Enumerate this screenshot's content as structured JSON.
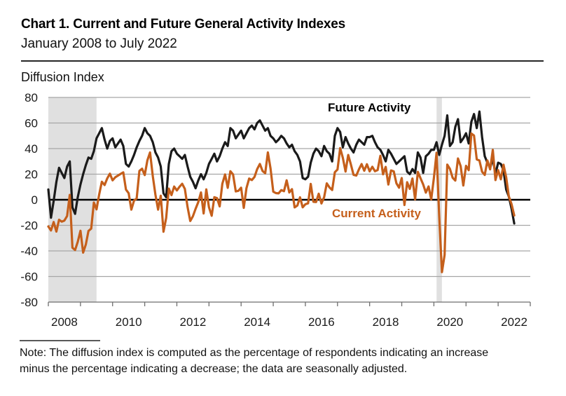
{
  "header": {
    "title": "Chart 1. Current and Future General Activity Indexes",
    "subtitle": "January 2008 to July 2022"
  },
  "note": {
    "line1": "Note: The diffusion index is computed as the percentage of respondents indicating an increase",
    "line2": "minus the percentage indicating a decrease; the data are seasonally adjusted."
  },
  "chart_data": {
    "type": "line",
    "title": "Chart 1. Current and Future General Activity Indexes",
    "subtitle": "January 2008 to July 2022",
    "ylabel": "Diffusion Index",
    "xlabel": "",
    "ylim": [
      -80,
      80
    ],
    "y_ticks": [
      -80,
      -60,
      -40,
      -20,
      0,
      20,
      40,
      60,
      80
    ],
    "x_start": "2008-01",
    "x_end": "2022-07",
    "x_axis_end": "2023-01",
    "x_tick_years": [
      2008,
      2010,
      2012,
      2014,
      2016,
      2018,
      2020,
      2022
    ],
    "grid": true,
    "gridline_color": "#a6a6a6",
    "zero_line_color": "#000000",
    "recession_color": "#e0e0e0",
    "recessions": [
      [
        "2008-01",
        "2009-07"
      ],
      [
        "2020-02",
        "2020-04"
      ]
    ],
    "series": [
      {
        "name": "Future Activity",
        "color": "#1a1a1a",
        "values": [
          8.0,
          -14.0,
          -1.0,
          14.0,
          25.0,
          21.0,
          17.0,
          26.0,
          30.0,
          -6.0,
          -11.0,
          2.0,
          12.0,
          20.0,
          27.0,
          33.0,
          32.0,
          38.0,
          48.0,
          52.0,
          56.0,
          47.0,
          40.0,
          46.0,
          48.0,
          41.0,
          44.0,
          47.0,
          42.0,
          28.0,
          26.0,
          30.0,
          35.0,
          41.0,
          46.0,
          50.0,
          56.0,
          52.0,
          50.0,
          45.0,
          37.0,
          33.0,
          26.0,
          5.0,
          2.0,
          28.0,
          38.0,
          40.0,
          36.0,
          34.0,
          32.0,
          35.0,
          26.0,
          18.0,
          14.0,
          9.0,
          15.0,
          20.0,
          16.0,
          21.0,
          28.0,
          32.0,
          36.0,
          30.0,
          34.0,
          40.0,
          45.0,
          42.0,
          56.0,
          54.0,
          48.0,
          51.0,
          54.0,
          48.0,
          52.0,
          56.0,
          58.0,
          55.0,
          60.0,
          62.0,
          58.0,
          54.0,
          56.0,
          50.0,
          48.0,
          45.0,
          47.0,
          50.0,
          48.0,
          44.0,
          41.0,
          43.0,
          38.0,
          35.0,
          30.0,
          17.0,
          16.0,
          18.0,
          29.0,
          36.0,
          40.0,
          38.0,
          34.0,
          42.0,
          38.0,
          36.0,
          30.0,
          50.0,
          56.0,
          53.0,
          41.0,
          49.0,
          44.0,
          40.0,
          37.0,
          43.0,
          47.0,
          45.0,
          43.0,
          49.0,
          49.0,
          50.0,
          45.0,
          41.0,
          39.0,
          35.0,
          30.0,
          39.0,
          36.0,
          32.0,
          28.0,
          30.0,
          32.0,
          34.0,
          22.0,
          20.0,
          24.0,
          21.0,
          37.0,
          33.0,
          21.0,
          34.0,
          36.0,
          39.0,
          39.0,
          45.0,
          35.0,
          43.0,
          50.0,
          66.0,
          42.0,
          45.0,
          57.0,
          63.0,
          45.0,
          48.0,
          52.0,
          44.0,
          61.0,
          67.0,
          56.0,
          69.0,
          49.0,
          34.0,
          29.0,
          25.0,
          32.0,
          20.0,
          29.0,
          28.0,
          23.0,
          8.0,
          2.5,
          -6.8,
          -18.6
        ]
      },
      {
        "name": "Current Activity",
        "color": "#c55f1b",
        "values": [
          -20.9,
          -24.0,
          -17.4,
          -24.9,
          -15.6,
          -17.1,
          -16.3,
          -12.7,
          3.8,
          -37.5,
          -39.3,
          -32.9,
          -24.3,
          -41.3,
          -35.0,
          -24.4,
          -22.6,
          -2.2,
          -7.5,
          4.2,
          14.1,
          11.5,
          16.7,
          20.4,
          15.2,
          17.6,
          18.9,
          20.2,
          21.4,
          8.0,
          5.1,
          -7.7,
          -0.7,
          1.0,
          22.5,
          24.3,
          19.3,
          30.8,
          37.0,
          18.5,
          3.9,
          -7.7,
          3.2,
          -25.0,
          -14.3,
          8.7,
          3.6,
          10.3,
          7.3,
          10.2,
          12.5,
          8.5,
          -5.8,
          -16.6,
          -12.9,
          -7.1,
          -1.9,
          5.7,
          -10.7,
          8.1,
          -5.8,
          -12.5,
          2.0,
          1.3,
          -5.2,
          12.5,
          19.8,
          9.3,
          22.3,
          19.8,
          6.5,
          7.0,
          9.4,
          -6.3,
          9.0,
          16.6,
          15.4,
          17.8,
          23.9,
          28.0,
          22.5,
          20.7,
          37.0,
          24.5,
          6.3,
          5.2,
          5.0,
          7.5,
          6.7,
          15.2,
          5.7,
          8.3,
          -6.0,
          -4.5,
          1.9,
          -5.9,
          -3.5,
          -2.8,
          12.4,
          -1.6,
          -1.8,
          4.7,
          -2.9,
          2.0,
          12.8,
          9.7,
          7.6,
          21.5,
          23.6,
          40.4,
          32.8,
          22.0,
          35.0,
          27.6,
          19.5,
          18.9,
          23.8,
          27.9,
          22.7,
          27.8,
          22.2,
          25.8,
          22.3,
          23.2,
          34.4,
          19.9,
          25.7,
          11.9,
          22.9,
          22.2,
          12.9,
          9.4,
          17.0,
          -4.1,
          13.7,
          8.5,
          16.6,
          0.3,
          21.8,
          16.8,
          12.0,
          5.6,
          10.4,
          0.3,
          17.0,
          36.7,
          -12.7,
          -56.6,
          -43.1,
          27.5,
          24.1,
          17.2,
          15.0,
          32.3,
          26.3,
          11.1,
          26.5,
          23.1,
          51.8,
          50.2,
          31.5,
          30.7,
          21.9,
          19.4,
          30.7,
          23.8,
          39.0,
          15.4,
          23.2,
          16.0,
          27.4,
          17.6,
          2.6,
          -3.3,
          -12.3
        ]
      }
    ]
  }
}
